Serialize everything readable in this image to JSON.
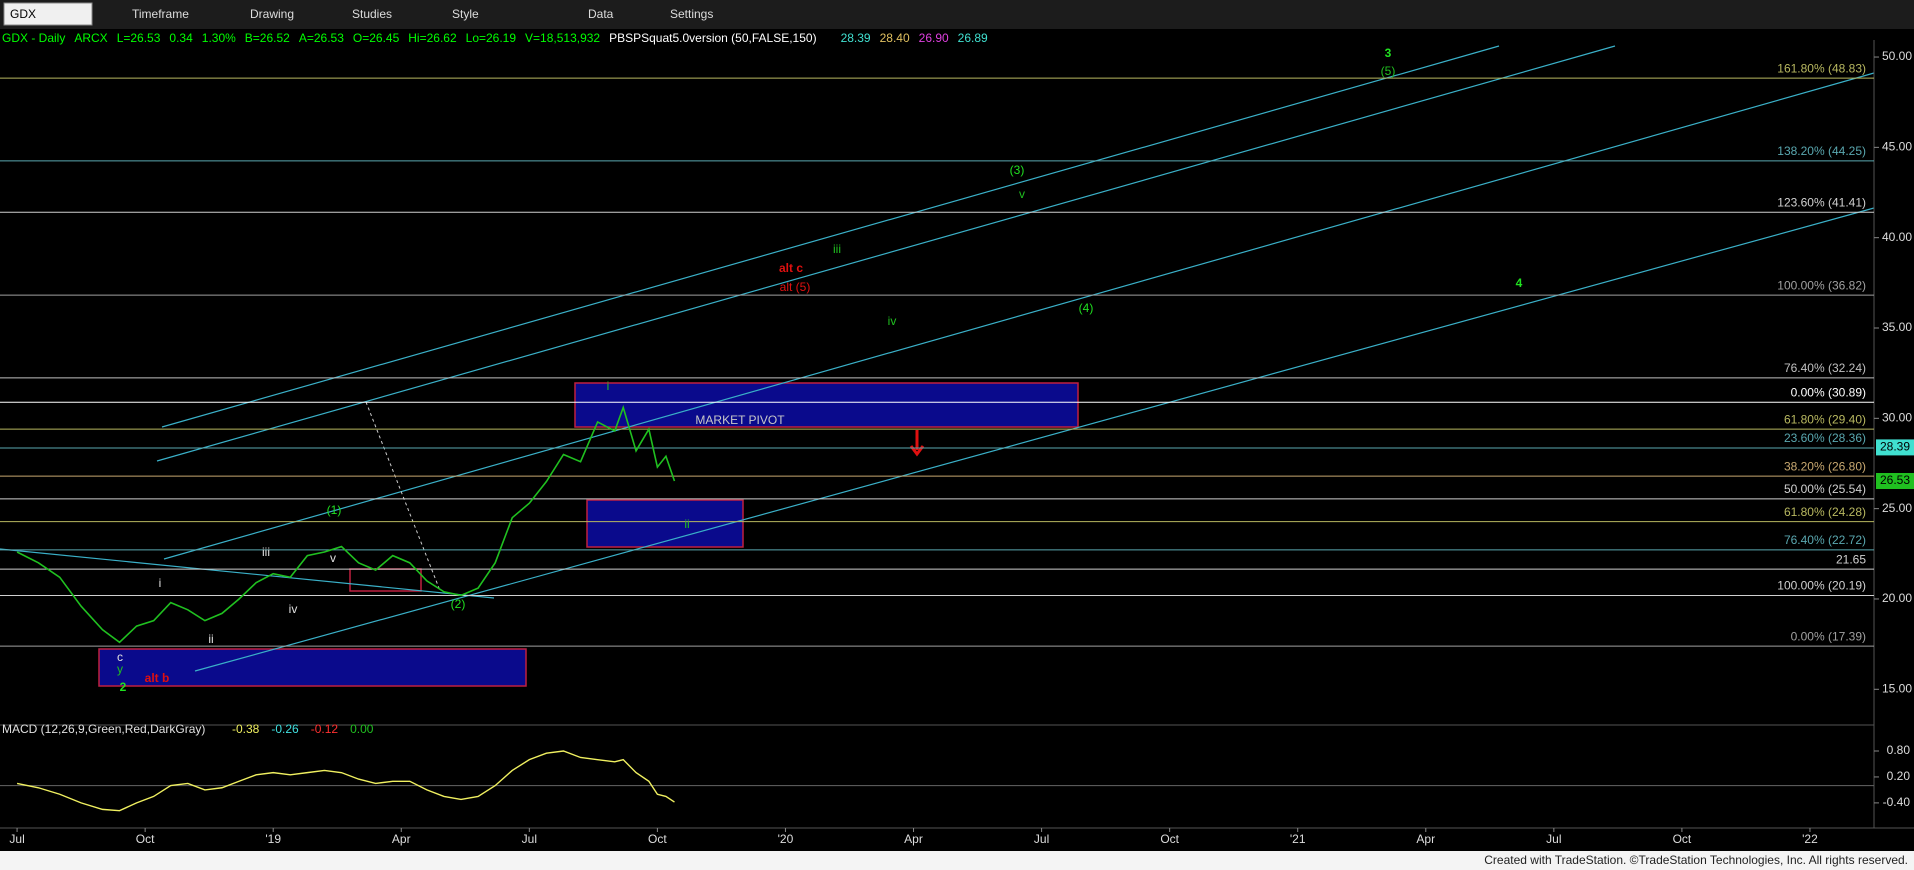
{
  "toolbar": {
    "symbol": "GDX",
    "menus": [
      "Timeframe",
      "Drawing",
      "Studies",
      "Style",
      "Data",
      "Settings"
    ]
  },
  "chart_data": {
    "type": "line",
    "header": [
      {
        "text": "GDX - Daily",
        "color": "#00ff00"
      },
      {
        "text": "ARCX",
        "color": "#00ff00"
      },
      {
        "text": "L=26.53",
        "color": "#00ff00"
      },
      {
        "text": "0.34",
        "color": "#00ff00"
      },
      {
        "text": "1.30%",
        "color": "#00ff00"
      },
      {
        "text": "B=26.52",
        "color": "#00ff00"
      },
      {
        "text": "A=26.53",
        "color": "#00ff00"
      },
      {
        "text": "O=26.45",
        "color": "#00ff00"
      },
      {
        "text": "Hi=26.62",
        "color": "#00ff00"
      },
      {
        "text": "Lo=26.19",
        "color": "#00ff00"
      },
      {
        "text": "V=18,513,932",
        "color": "#00ff00"
      },
      {
        "text": "PBSPSquat5.0version (50,FALSE,150)",
        "color": "#ffffff"
      },
      {
        "text": "28.39",
        "color": "#40e0d0"
      },
      {
        "text": "28.40",
        "color": "#e0c060"
      },
      {
        "text": "26.90",
        "color": "#e040e0"
      },
      {
        "text": "26.89",
        "color": "#40e0d0"
      }
    ],
    "x": [
      0,
      0.5,
      1,
      1.5,
      2,
      2.4,
      2.8,
      3.2,
      3.6,
      4,
      4.4,
      4.8,
      5.2,
      5.6,
      6,
      6.4,
      6.8,
      7.2,
      7.6,
      8,
      8.4,
      8.8,
      9.2,
      9.6,
      10,
      10.4,
      10.8,
      11.2,
      11.6,
      12,
      12.4,
      12.8,
      13.2,
      13.6,
      14,
      14.2,
      14.5,
      14.8,
      15,
      15.2,
      15.4
    ],
    "series": [
      {
        "name": "GDX",
        "color": "#20c020",
        "values": [
          22.6,
          22.0,
          21.2,
          19.6,
          18.3,
          17.6,
          18.5,
          18.8,
          19.8,
          19.4,
          18.8,
          19.2,
          20.0,
          20.9,
          21.4,
          21.2,
          22.4,
          22.6,
          22.9,
          22.0,
          21.6,
          22.4,
          22.0,
          21.0,
          20.4,
          20.2,
          20.6,
          22.0,
          24.5,
          25.3,
          26.5,
          28.0,
          27.6,
          29.8,
          29.3,
          30.6,
          28.2,
          29.4,
          27.3,
          27.9,
          26.53
        ]
      }
    ],
    "xlim": [
      -0.4,
      43.5
    ],
    "xticks": [
      {
        "value": 0,
        "label": "Jul"
      },
      {
        "value": 3,
        "label": "Oct"
      },
      {
        "value": 6,
        "label": "'19"
      },
      {
        "value": 9,
        "label": "Apr"
      },
      {
        "value": 12,
        "label": "Jul"
      },
      {
        "value": 15,
        "label": "Oct"
      },
      {
        "value": 18,
        "label": "'20"
      },
      {
        "value": 21,
        "label": "Apr"
      },
      {
        "value": 24,
        "label": "Jul"
      },
      {
        "value": 27,
        "label": "Oct"
      },
      {
        "value": 30,
        "label": "'21"
      },
      {
        "value": 33,
        "label": "Apr"
      },
      {
        "value": 36,
        "label": "Jul"
      },
      {
        "value": 39,
        "label": "Oct"
      },
      {
        "value": 42,
        "label": "'22"
      }
    ],
    "ylim": [
      13.3,
      50.5
    ],
    "yticks": [
      {
        "value": 15,
        "label": "15.00"
      },
      {
        "value": 20,
        "label": "20.00"
      },
      {
        "value": 25,
        "label": "25.00"
      },
      {
        "value": 30,
        "label": "30.00"
      },
      {
        "value": 35,
        "label": "35.00"
      },
      {
        "value": 40,
        "label": "40.00"
      },
      {
        "value": 45,
        "label": "45.00"
      },
      {
        "value": 50,
        "label": "50.00"
      }
    ],
    "price_tags": [
      {
        "value": 28.39,
        "label": "28.39",
        "color": "#40e0d0"
      },
      {
        "value": 26.53,
        "label": "26.53",
        "color": "#20c020"
      }
    ],
    "fib_levels": [
      {
        "label": "161.80% (48.83)",
        "value": 48.83,
        "color": "#b8b860"
      },
      {
        "label": "138.20% (44.25)",
        "value": 44.25,
        "color": "#5aa8b0"
      },
      {
        "label": "123.60% (41.41)",
        "value": 41.41,
        "color": "#d0d0d0"
      },
      {
        "label": "100.00% (36.82)",
        "value": 36.82,
        "color": "#a0a0a0"
      },
      {
        "label": "76.40% (32.24)",
        "value": 32.24,
        "color": "#c0c0c0"
      },
      {
        "label": "0.00% (30.89)",
        "value": 30.89,
        "color": "#ffffff"
      },
      {
        "label": "61.80% (29.40)",
        "value": 29.4,
        "color": "#b8b860"
      },
      {
        "label": "23.60% (28.36)",
        "value": 28.36,
        "color": "#5aa8b0"
      },
      {
        "label": "38.20% (26.80)",
        "value": 26.8,
        "color": "#c8a870"
      },
      {
        "label": "50.00% (25.54)",
        "value": 25.54,
        "color": "#d0d0d0"
      },
      {
        "label": "61.80% (24.28)",
        "value": 24.28,
        "color": "#b8b860"
      },
      {
        "label": "76.40% (22.72)",
        "value": 22.72,
        "color": "#5aa8b0"
      },
      {
        "label": "21.65",
        "value": 21.65,
        "color": "#d0d0d0"
      },
      {
        "label": "100.00% (20.19)",
        "value": 20.19,
        "color": "#d0d0d0"
      },
      {
        "label": "0.00% (17.39)",
        "value": 17.39,
        "color": "#a0a0a0"
      }
    ],
    "annotations": [
      {
        "text": "3",
        "color": "#20e020"
      },
      {
        "text": "(5)",
        "color": "#20c020"
      },
      {
        "text": "(3)",
        "color": "#20e020"
      },
      {
        "text": "v",
        "color": "#20c020"
      },
      {
        "text": "iii",
        "color": "#20c020"
      },
      {
        "text": "alt c",
        "color": "#e01010"
      },
      {
        "text": "alt (5)",
        "color": "#e01010"
      },
      {
        "text": "iv",
        "color": "#20c020"
      },
      {
        "text": "(4)",
        "color": "#20e020"
      },
      {
        "text": "4",
        "color": "#20e020"
      },
      {
        "text": "i",
        "color": "#20c020"
      },
      {
        "text": "MARKET PIVOT",
        "color": "#c8c8c8"
      },
      {
        "text": "ii",
        "color": "#20c020"
      },
      {
        "text": "(1)",
        "color": "#20e020"
      },
      {
        "text": "v",
        "color": "#e0e0e0"
      },
      {
        "text": "iii",
        "color": "#e0e0e0"
      },
      {
        "text": "i",
        "color": "#e0e0e0"
      },
      {
        "text": "iv",
        "color": "#e0e0e0"
      },
      {
        "text": "ii",
        "color": "#e0e0e0"
      },
      {
        "text": "(2)",
        "color": "#20e020"
      },
      {
        "text": "c",
        "color": "#e0e0e0"
      },
      {
        "text": "y",
        "color": "#20c020"
      },
      {
        "text": "2",
        "color": "#20e020"
      },
      {
        "text": "alt b",
        "color": "#e01010"
      }
    ],
    "macd": {
      "title": "MACD (12,26,9,Green,Red,DarkGray)",
      "readouts": [
        {
          "text": "-0.38",
          "color": "#f0f060"
        },
        {
          "text": "-0.26",
          "color": "#40e0e0"
        },
        {
          "text": "-0.12",
          "color": "#ff3030"
        },
        {
          "text": "0.00",
          "color": "#20c020"
        }
      ],
      "color": "#f0f060",
      "values": [
        0.05,
        -0.05,
        -0.2,
        -0.4,
        -0.55,
        -0.58,
        -0.4,
        -0.25,
        0.0,
        0.05,
        -0.1,
        -0.05,
        0.1,
        0.25,
        0.3,
        0.25,
        0.3,
        0.35,
        0.3,
        0.15,
        0.05,
        0.1,
        0.1,
        -0.1,
        -0.25,
        -0.32,
        -0.25,
        0.0,
        0.35,
        0.6,
        0.75,
        0.8,
        0.65,
        0.6,
        0.55,
        0.6,
        0.3,
        0.1,
        -0.2,
        -0.25,
        -0.38
      ],
      "ylim": [
        -0.68,
        1.17
      ],
      "yticks": [
        {
          "value": -0.4,
          "label": "-0.40"
        },
        {
          "value": 0.2,
          "label": "0.20"
        },
        {
          "value": 0.8,
          "label": "0.80"
        }
      ]
    },
    "footer": "Created with TradeStation. ©TradeStation Technologies, Inc. All rights reserved."
  }
}
